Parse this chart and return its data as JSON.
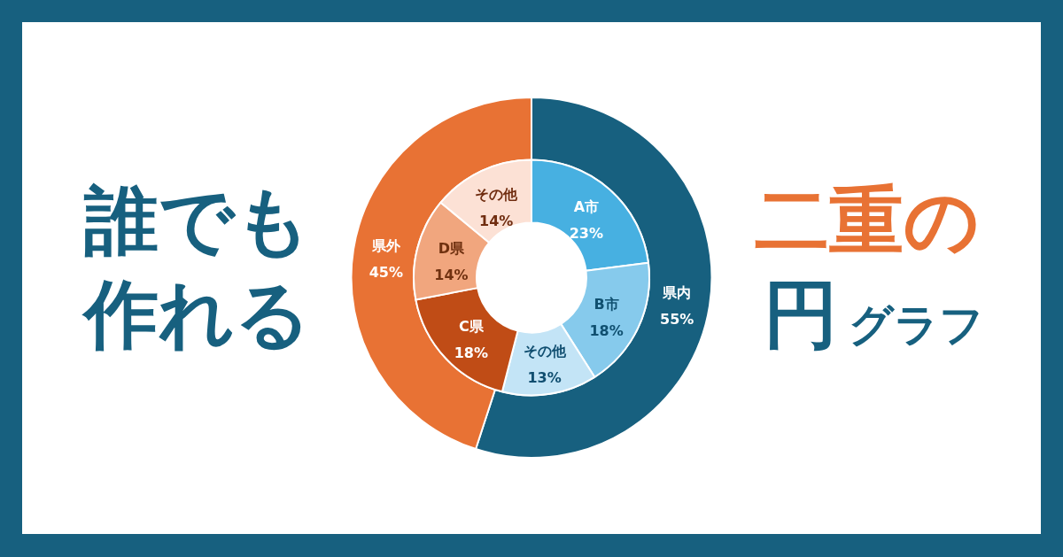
{
  "chart_data": [
    {
      "type": "donut",
      "title": "誰でも作れる",
      "subtitle": "二重の",
      "annotations": [
        "円$_{グラフ}$"
      ],
      "categories": [
        "県内",
        "県外"
      ],
      "values": [
        55,
        45
      ],
      "colors": [
        "#17607f",
        "#e87234"
      ],
      "value_labels": [
        "55%",
        "45%"
      ]
    },
    {
      "type": "donut",
      "categories": [
        "A市",
        "B市",
        "その他",
        "C県",
        "D県",
        "その他"
      ],
      "values": [
        23,
        18,
        13,
        18,
        14,
        14
      ],
      "colors": [
        "#47b0e1",
        "#86caec",
        "#c3e4f6",
        "#c04c16",
        "#f1a67e",
        "#fce1d5"
      ],
      "value_labels": [
        "23%",
        "18%",
        "13%",
        "18%",
        "14%",
        "14%"
      ]
    }
  ]
}
